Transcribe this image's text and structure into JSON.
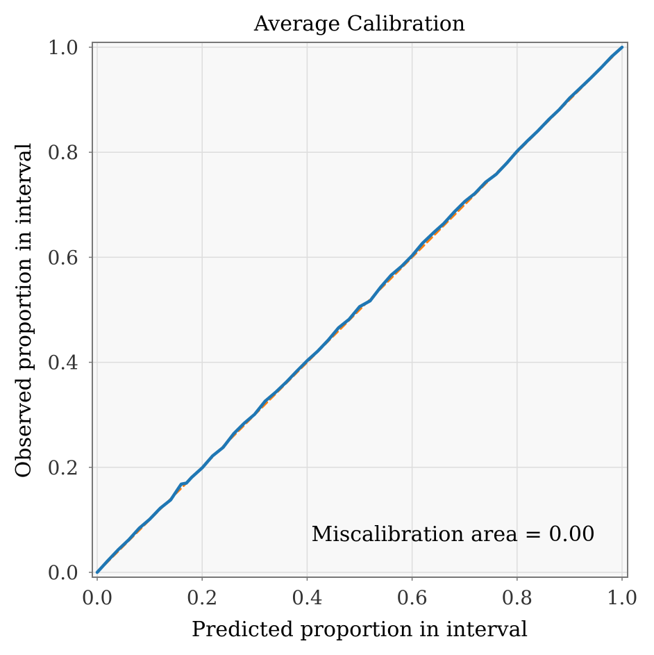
{
  "chart_data": {
    "type": "line",
    "title": "Average Calibration",
    "xlabel": "Predicted proportion in interval",
    "ylabel": "Observed proportion in interval",
    "xlim": [
      0,
      1
    ],
    "ylim": [
      0,
      1
    ],
    "grid": true,
    "xticks": [
      "0.0",
      "0.2",
      "0.4",
      "0.6",
      "0.8",
      "1.0"
    ],
    "yticks": [
      "0.0",
      "0.2",
      "0.4",
      "0.6",
      "0.8",
      "1.0"
    ],
    "annotation": "Miscalibration area = 0.00",
    "colors": {
      "background": "#f8f8f8",
      "grid": "#dddddd",
      "spine": "#777777",
      "ideal": "#ff7f0e",
      "observed": "#1f77b4"
    },
    "series": [
      {
        "name": "ideal",
        "style": "dashed",
        "x": [
          0,
          1
        ],
        "y": [
          0,
          1
        ]
      },
      {
        "name": "observed",
        "style": "solid",
        "x": [
          0,
          0.02,
          0.04,
          0.06,
          0.08,
          0.1,
          0.12,
          0.14,
          0.16,
          0.17,
          0.18,
          0.2,
          0.22,
          0.24,
          0.26,
          0.28,
          0.3,
          0.32,
          0.34,
          0.36,
          0.38,
          0.4,
          0.42,
          0.44,
          0.46,
          0.48,
          0.5,
          0.52,
          0.54,
          0.56,
          0.58,
          0.6,
          0.62,
          0.64,
          0.66,
          0.68,
          0.7,
          0.72,
          0.74,
          0.76,
          0.78,
          0.8,
          0.82,
          0.84,
          0.86,
          0.88,
          0.9,
          0.92,
          0.94,
          0.96,
          0.98,
          1.0
        ],
        "y": [
          0,
          0.022,
          0.043,
          0.062,
          0.084,
          0.101,
          0.122,
          0.138,
          0.168,
          0.17,
          0.181,
          0.199,
          0.222,
          0.238,
          0.264,
          0.284,
          0.301,
          0.326,
          0.343,
          0.362,
          0.383,
          0.403,
          0.421,
          0.442,
          0.466,
          0.482,
          0.506,
          0.517,
          0.543,
          0.566,
          0.583,
          0.603,
          0.627,
          0.646,
          0.664,
          0.686,
          0.706,
          0.722,
          0.743,
          0.758,
          0.779,
          0.802,
          0.822,
          0.841,
          0.862,
          0.881,
          0.903,
          0.922,
          0.941,
          0.961,
          0.982,
          1.0
        ]
      }
    ]
  }
}
